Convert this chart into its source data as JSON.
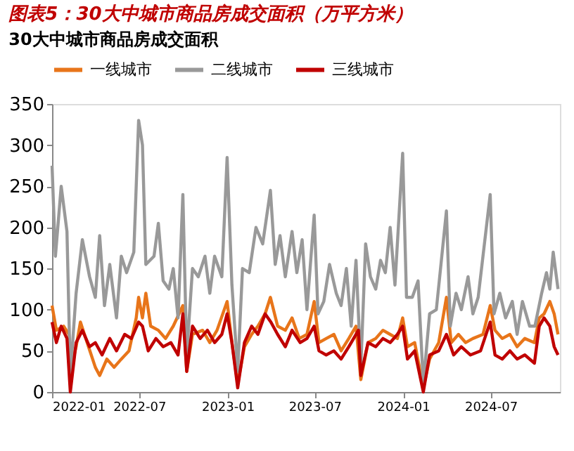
{
  "chart_data": {
    "type": "line",
    "title": "图表5：30大中城市商品房成交面积（万平方米）",
    "subtitle": "30大中城市商品房成交面积",
    "xlim": [
      "2022-01-01",
      "2024-11-22"
    ],
    "xticks": [
      "2022-01",
      "2022-07",
      "2023-01",
      "2023-07",
      "2024-01",
      "2024-07"
    ],
    "ylim": [
      0,
      350
    ],
    "yticks": [
      0,
      50,
      100,
      150,
      200,
      250,
      300,
      350
    ],
    "grid": false,
    "legend": "top",
    "line_style": "solid",
    "marker": "none",
    "series": [
      {
        "name": "一线城市",
        "color": "#e8751a",
        "x": [
          "2022-01-01",
          "2022-01-10",
          "2022-01-25",
          "2022-02-05",
          "2022-02-10",
          "2022-02-20",
          "2022-03-01",
          "2022-03-15",
          "2022-04-01",
          "2022-04-10",
          "2022-04-25",
          "2022-05-10",
          "2022-05-25",
          "2022-06-10",
          "2022-06-25",
          "2022-06-30",
          "2022-07-08",
          "2022-07-15",
          "2022-07-25",
          "2022-08-10",
          "2022-08-25",
          "2022-09-10",
          "2022-09-30",
          "2022-10-08",
          "2022-10-20",
          "2022-11-10",
          "2022-11-25",
          "2022-12-10",
          "2022-12-31",
          "2023-01-10",
          "2023-01-22",
          "2023-02-05",
          "2023-02-20",
          "2023-03-05",
          "2023-03-20",
          "2023-03-31",
          "2023-04-15",
          "2023-05-01",
          "2023-05-15",
          "2023-05-30",
          "2023-06-15",
          "2023-06-30",
          "2023-07-10",
          "2023-07-25",
          "2023-08-10",
          "2023-08-25",
          "2023-09-10",
          "2023-09-25",
          "2023-10-05",
          "2023-10-20",
          "2023-11-05",
          "2023-11-20",
          "2023-12-05",
          "2023-12-20",
          "2023-12-31",
          "2024-01-10",
          "2024-01-25",
          "2024-02-12",
          "2024-02-25",
          "2024-03-15",
          "2024-03-31",
          "2024-04-10",
          "2024-04-25",
          "2024-05-10",
          "2024-05-25",
          "2024-06-15",
          "2024-06-30",
          "2024-07-10",
          "2024-07-25",
          "2024-08-10",
          "2024-08-25",
          "2024-09-10",
          "2024-09-30",
          "2024-10-10",
          "2024-10-20",
          "2024-11-01",
          "2024-11-10",
          "2024-11-18"
        ],
        "values": [
          105,
          75,
          80,
          70,
          30,
          55,
          85,
          60,
          30,
          20,
          40,
          30,
          40,
          50,
          90,
          115,
          90,
          120,
          80,
          75,
          65,
          80,
          105,
          25,
          70,
          75,
          60,
          75,
          110,
          60,
          10,
          55,
          70,
          80,
          95,
          115,
          80,
          75,
          90,
          65,
          70,
          110,
          60,
          65,
          70,
          50,
          65,
          80,
          15,
          60,
          65,
          75,
          70,
          65,
          90,
          55,
          60,
          5,
          40,
          60,
          115,
          60,
          70,
          60,
          65,
          70,
          105,
          75,
          65,
          70,
          55,
          65,
          60,
          90,
          95,
          110,
          95,
          70
        ]
      },
      {
        "name": "二线城市",
        "color": "#999999",
        "x": [
          "2022-01-01",
          "2022-01-08",
          "2022-01-20",
          "2022-02-01",
          "2022-02-08",
          "2022-02-20",
          "2022-03-05",
          "2022-03-20",
          "2022-04-01",
          "2022-04-10",
          "2022-04-20",
          "2022-05-01",
          "2022-05-15",
          "2022-05-25",
          "2022-06-05",
          "2022-06-20",
          "2022-06-30",
          "2022-07-08",
          "2022-07-15",
          "2022-08-01",
          "2022-08-10",
          "2022-08-20",
          "2022-09-01",
          "2022-09-10",
          "2022-09-20",
          "2022-09-30",
          "2022-10-08",
          "2022-10-20",
          "2022-11-01",
          "2022-11-15",
          "2022-11-25",
          "2022-12-05",
          "2022-12-20",
          "2022-12-31",
          "2023-01-10",
          "2023-01-22",
          "2023-02-01",
          "2023-02-15",
          "2023-03-01",
          "2023-03-15",
          "2023-03-31",
          "2023-04-10",
          "2023-04-20",
          "2023-05-01",
          "2023-05-15",
          "2023-05-25",
          "2023-06-05",
          "2023-06-15",
          "2023-06-30",
          "2023-07-08",
          "2023-07-20",
          "2023-08-01",
          "2023-08-15",
          "2023-08-25",
          "2023-09-05",
          "2023-09-15",
          "2023-09-25",
          "2023-10-05",
          "2023-10-15",
          "2023-10-25",
          "2023-11-05",
          "2023-11-15",
          "2023-11-25",
          "2023-12-05",
          "2023-12-15",
          "2023-12-31",
          "2024-01-08",
          "2024-01-20",
          "2024-02-01",
          "2024-02-12",
          "2024-02-25",
          "2024-03-10",
          "2024-03-31",
          "2024-04-08",
          "2024-04-20",
          "2024-05-01",
          "2024-05-15",
          "2024-05-25",
          "2024-06-05",
          "2024-06-30",
          "2024-07-08",
          "2024-07-20",
          "2024-08-01",
          "2024-08-15",
          "2024-08-25",
          "2024-09-05",
          "2024-09-20",
          "2024-10-01",
          "2024-10-15",
          "2024-10-25",
          "2024-11-01",
          "2024-11-08",
          "2024-11-18"
        ],
        "values": [
          275,
          165,
          250,
          195,
          20,
          120,
          185,
          140,
          115,
          190,
          105,
          155,
          90,
          165,
          145,
          170,
          330,
          300,
          155,
          165,
          205,
          135,
          125,
          150,
          90,
          240,
          45,
          150,
          140,
          165,
          120,
          165,
          140,
          285,
          130,
          25,
          150,
          145,
          200,
          180,
          245,
          155,
          190,
          140,
          195,
          145,
          185,
          100,
          215,
          95,
          110,
          155,
          120,
          105,
          150,
          80,
          160,
          30,
          180,
          140,
          125,
          160,
          145,
          200,
          130,
          290,
          115,
          115,
          135,
          10,
          95,
          100,
          220,
          80,
          120,
          100,
          140,
          95,
          115,
          240,
          95,
          120,
          90,
          110,
          70,
          110,
          80,
          80,
          120,
          145,
          125,
          170,
          125
        ]
      },
      {
        "name": "三线城市",
        "color": "#c00000",
        "x": [
          "2022-01-01",
          "2022-01-10",
          "2022-01-20",
          "2022-02-01",
          "2022-02-08",
          "2022-02-20",
          "2022-03-05",
          "2022-03-20",
          "2022-04-01",
          "2022-04-15",
          "2022-05-01",
          "2022-05-15",
          "2022-06-01",
          "2022-06-15",
          "2022-06-30",
          "2022-07-08",
          "2022-07-20",
          "2022-08-05",
          "2022-08-20",
          "2022-09-05",
          "2022-09-20",
          "2022-09-30",
          "2022-10-08",
          "2022-10-20",
          "2022-11-05",
          "2022-11-20",
          "2022-12-05",
          "2022-12-20",
          "2022-12-31",
          "2023-01-10",
          "2023-01-22",
          "2023-02-05",
          "2023-02-20",
          "2023-03-05",
          "2023-03-20",
          "2023-04-01",
          "2023-04-15",
          "2023-05-01",
          "2023-05-15",
          "2023-06-01",
          "2023-06-15",
          "2023-06-30",
          "2023-07-10",
          "2023-07-25",
          "2023-08-10",
          "2023-08-25",
          "2023-09-10",
          "2023-09-30",
          "2023-10-05",
          "2023-10-20",
          "2023-11-05",
          "2023-11-20",
          "2023-12-05",
          "2023-12-20",
          "2023-12-31",
          "2024-01-10",
          "2024-01-25",
          "2024-02-12",
          "2024-02-25",
          "2024-03-15",
          "2024-03-31",
          "2024-04-15",
          "2024-05-01",
          "2024-05-20",
          "2024-06-10",
          "2024-06-30",
          "2024-07-10",
          "2024-07-25",
          "2024-08-10",
          "2024-08-25",
          "2024-09-10",
          "2024-09-30",
          "2024-10-10",
          "2024-10-20",
          "2024-11-01",
          "2024-11-10",
          "2024-11-18"
        ],
        "values": [
          85,
          60,
          80,
          65,
          0,
          60,
          75,
          55,
          60,
          45,
          65,
          50,
          70,
          65,
          85,
          80,
          50,
          65,
          55,
          60,
          45,
          95,
          25,
          80,
          65,
          75,
          60,
          70,
          95,
          60,
          5,
          60,
          80,
          70,
          95,
          85,
          70,
          55,
          75,
          60,
          65,
          80,
          50,
          45,
          50,
          40,
          55,
          75,
          20,
          60,
          55,
          65,
          60,
          70,
          80,
          40,
          50,
          0,
          45,
          50,
          70,
          45,
          55,
          45,
          50,
          85,
          45,
          40,
          50,
          40,
          45,
          35,
          80,
          90,
          80,
          55,
          45
        ]
      }
    ]
  }
}
